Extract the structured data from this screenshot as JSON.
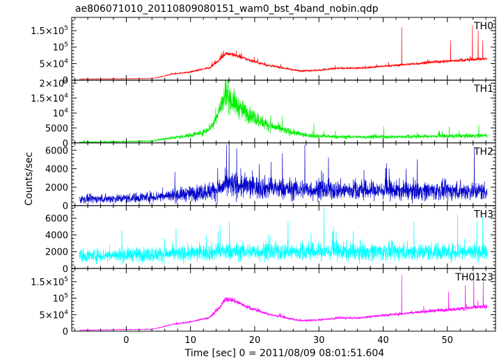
{
  "chart_data": {
    "type": "line",
    "title": "ae806071010_20110809080151_wam0_bst_4band_nobin.qdp",
    "xlabel": "Time [sec] 0 = 2011/08/09 08:01:51.604",
    "ylabel": "Counts/sec",
    "xlim": [
      -8.5,
      57.5
    ],
    "x_ticks": [
      0,
      10,
      20,
      30,
      40,
      50
    ],
    "x_tick_labels": [
      "0",
      "10",
      "20",
      "30",
      "40",
      "50"
    ],
    "x_data_range": [
      -7.3,
      56.2
    ],
    "panels": [
      {
        "name": "TH0",
        "color": "#ff0000",
        "ylim": [
          0,
          190000
        ],
        "y_ticks": [
          0,
          50000,
          100000,
          150000
        ],
        "y_tick_labels": [
          {
            "mant": "0",
            "exp": ""
          },
          {
            "mant": "5×10",
            "exp": "4"
          },
          {
            "mant": "10",
            "exp": "5"
          },
          {
            "mant": "1.5×10",
            "exp": "5"
          }
        ],
        "envelope": [
          [
            -7.3,
            3000
          ],
          [
            4,
            5000
          ],
          [
            5.5,
            10000
          ],
          [
            7,
            18000
          ],
          [
            10,
            25000
          ],
          [
            13,
            38000
          ],
          [
            14.5,
            60000
          ],
          [
            15.5,
            82000
          ],
          [
            16.5,
            78000
          ],
          [
            19,
            62000
          ],
          [
            22,
            45000
          ],
          [
            25,
            35000
          ],
          [
            27,
            28000
          ],
          [
            30,
            30000
          ],
          [
            33,
            36000
          ],
          [
            36,
            36000
          ],
          [
            40,
            42000
          ],
          [
            44,
            48000
          ],
          [
            48,
            55000
          ],
          [
            52,
            60000
          ],
          [
            56.2,
            65000
          ]
        ],
        "noise": 0.06,
        "min_noise": 400,
        "spikes": [
          [
            42.9,
            160000
          ],
          [
            50.5,
            120000
          ],
          [
            53.9,
            165000
          ],
          [
            54.8,
            150000
          ],
          [
            55.5,
            120000
          ]
        ]
      },
      {
        "name": "TH1",
        "color": "#00ee00",
        "ylim": [
          0,
          21000
        ],
        "y_ticks": [
          0,
          5000,
          10000,
          15000,
          20000
        ],
        "y_tick_labels": [
          {
            "mant": "0",
            "exp": ""
          },
          {
            "mant": "5000",
            "exp": ""
          },
          {
            "mant": "10",
            "exp": "4"
          },
          {
            "mant": "1.5×10",
            "exp": "4"
          },
          {
            "mant": "2×10",
            "exp": "4"
          }
        ],
        "envelope": [
          [
            -7.3,
            200
          ],
          [
            4,
            600
          ],
          [
            6,
            1400
          ],
          [
            9,
            2200
          ],
          [
            12,
            3500
          ],
          [
            13.5,
            6000
          ],
          [
            14.5,
            11000
          ],
          [
            15.5,
            16500
          ],
          [
            16.5,
            14000
          ],
          [
            18,
            11000
          ],
          [
            20,
            8500
          ],
          [
            22,
            6000
          ],
          [
            25,
            4000
          ],
          [
            28,
            2500
          ],
          [
            33,
            2000
          ],
          [
            40,
            2000
          ],
          [
            48,
            2200
          ],
          [
            56.2,
            2500
          ]
        ],
        "noise": 0.22,
        "min_noise": 150,
        "spikes": [
          [
            15.4,
            21000
          ],
          [
            29.2,
            6500
          ],
          [
            40.1,
            5500
          ],
          [
            50.3,
            5500
          ],
          [
            54.9,
            6000
          ]
        ]
      },
      {
        "name": "TH2",
        "color": "#0000cc",
        "ylim": [
          0,
          6800
        ],
        "y_ticks": [
          0,
          2000,
          4000,
          6000
        ],
        "y_tick_labels": [
          {
            "mant": "0",
            "exp": ""
          },
          {
            "mant": "2000",
            "exp": ""
          },
          {
            "mant": "4000",
            "exp": ""
          },
          {
            "mant": "6000",
            "exp": ""
          }
        ],
        "envelope": [
          [
            -7.3,
            700
          ],
          [
            0,
            800
          ],
          [
            5,
            1000
          ],
          [
            10,
            1300
          ],
          [
            14,
            1700
          ],
          [
            16,
            2300
          ],
          [
            20,
            2000
          ],
          [
            25,
            1800
          ],
          [
            30,
            1700
          ],
          [
            40,
            1650
          ],
          [
            50,
            1600
          ],
          [
            56.2,
            1600
          ]
        ],
        "noise": 0.45,
        "min_noise": 200,
        "spikes": [
          [
            15.6,
            6600
          ],
          [
            17.2,
            6200
          ],
          [
            27.8,
            6600
          ],
          [
            31.5,
            5200
          ],
          [
            45.3,
            5000
          ],
          [
            54.2,
            6200
          ]
        ]
      },
      {
        "name": "TH3",
        "color": "#00ffff",
        "ylim": [
          0,
          7500
        ],
        "y_ticks": [
          0,
          2000,
          4000,
          6000
        ],
        "y_tick_labels": [
          {
            "mant": "0",
            "exp": ""
          },
          {
            "mant": "2000",
            "exp": ""
          },
          {
            "mant": "4000",
            "exp": ""
          },
          {
            "mant": "6000",
            "exp": ""
          }
        ],
        "envelope": [
          [
            -7.3,
            1500
          ],
          [
            5,
            1700
          ],
          [
            10,
            1800
          ],
          [
            15,
            2000
          ],
          [
            20,
            2000
          ],
          [
            30,
            2000
          ],
          [
            40,
            2000
          ],
          [
            50,
            2000
          ],
          [
            56.2,
            2000
          ]
        ],
        "noise": 0.38,
        "min_noise": 200,
        "spikes": [
          [
            14.6,
            5200
          ],
          [
            25.2,
            5600
          ],
          [
            30.8,
            7300
          ],
          [
            44.8,
            5600
          ],
          [
            51.6,
            6400
          ],
          [
            55.5,
            6300
          ]
        ]
      },
      {
        "name": "TH0123",
        "color": "#ff00ff",
        "ylim": [
          0,
          190000
        ],
        "y_ticks": [
          0,
          50000,
          100000,
          150000
        ],
        "y_tick_labels": [
          {
            "mant": "0",
            "exp": ""
          },
          {
            "mant": "5×10",
            "exp": "4"
          },
          {
            "mant": "10",
            "exp": "5"
          },
          {
            "mant": "1.5×10",
            "exp": "5"
          }
        ],
        "envelope": [
          [
            -7.3,
            3000
          ],
          [
            4,
            6000
          ],
          [
            5.5,
            12000
          ],
          [
            7,
            20000
          ],
          [
            10,
            28000
          ],
          [
            13,
            42000
          ],
          [
            14.5,
            70000
          ],
          [
            15.5,
            98000
          ],
          [
            16.5,
            95000
          ],
          [
            19,
            72000
          ],
          [
            22,
            52000
          ],
          [
            25,
            40000
          ],
          [
            27,
            32000
          ],
          [
            30,
            34000
          ],
          [
            33,
            40000
          ],
          [
            36,
            40000
          ],
          [
            40,
            48000
          ],
          [
            44,
            55000
          ],
          [
            48,
            62000
          ],
          [
            52,
            68000
          ],
          [
            56.2,
            75000
          ]
        ],
        "noise": 0.06,
        "min_noise": 500,
        "spikes": [
          [
            42.9,
            170000
          ],
          [
            50.2,
            120000
          ],
          [
            52.8,
            140000
          ],
          [
            54.1,
            180000
          ],
          [
            55.6,
            150000
          ]
        ]
      }
    ]
  }
}
